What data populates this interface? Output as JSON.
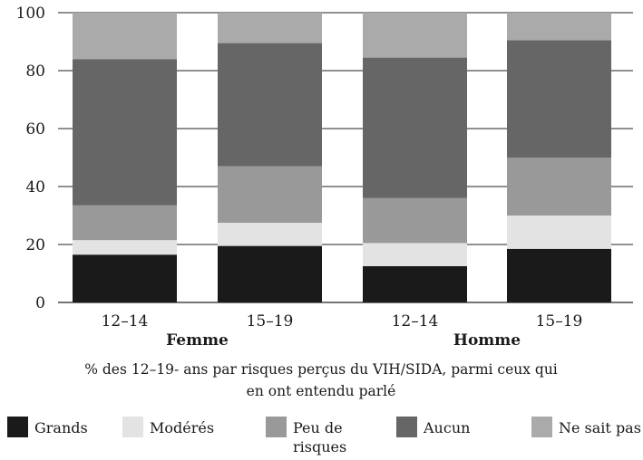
{
  "chart_data": {
    "type": "bar",
    "stacked": true,
    "categories": [
      "12–14",
      "15–19",
      "12–14",
      "15–19"
    ],
    "groups": [
      {
        "label": "Femme",
        "categories": [
          0,
          1
        ]
      },
      {
        "label": "Homme",
        "categories": [
          2,
          3
        ]
      }
    ],
    "series": [
      {
        "name": "Grands",
        "color": "#1a1a1a",
        "values": [
          16.5,
          19.5,
          12.5,
          18.5
        ]
      },
      {
        "name": "Modérés",
        "color": "#e3e3e3",
        "values": [
          5,
          8,
          8,
          11.5
        ]
      },
      {
        "name": "Peu de risques",
        "color": "#999999",
        "values": [
          12,
          19.5,
          15.5,
          20
        ]
      },
      {
        "name": "Aucun",
        "color": "#666666",
        "values": [
          50.5,
          42.5,
          48.5,
          40.5
        ]
      },
      {
        "name": "Ne sait pas",
        "color": "#aaaaaa",
        "values": [
          16,
          10.5,
          15.5,
          9.5
        ]
      }
    ],
    "legend_labels": [
      [
        "Grands"
      ],
      [
        "Modérés"
      ],
      [
        "Peu de",
        "risques"
      ],
      [
        "Aucun"
      ],
      [
        "Ne sait pas"
      ]
    ],
    "ylim": [
      0,
      100
    ],
    "yticks": [
      0,
      20,
      40,
      60,
      80,
      100
    ],
    "grid": "horizontal",
    "legend_position": "bottom",
    "caption_lines": [
      "% des 12–19- ans par risques perçus du VIH/SIDA, parmi ceux qui",
      "en ont entendu parlé"
    ],
    "xlabel": "",
    "ylabel": "",
    "title": ""
  }
}
